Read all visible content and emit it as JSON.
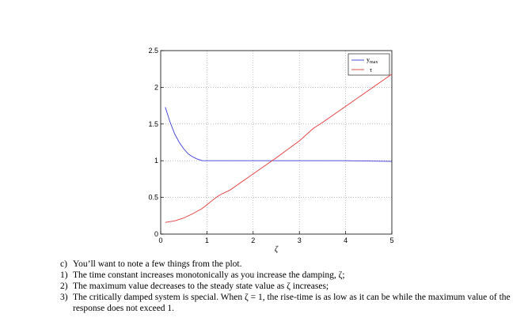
{
  "chart_data": {
    "type": "line",
    "xlabel": "ζ",
    "xlim": [
      0,
      5
    ],
    "ylim": [
      0,
      2.5
    ],
    "xticks": [
      "0",
      "1",
      "2",
      "3",
      "4",
      "5"
    ],
    "yticks": [
      "0",
      "0.5",
      "1",
      "1.5",
      "2",
      "2.5"
    ],
    "grid": true,
    "legend_position": "top-right",
    "series": [
      {
        "name": "y",
        "name_subscript": "max",
        "color": "#3b3bd6",
        "x": [
          0.1,
          0.2,
          0.3,
          0.4,
          0.5,
          0.6,
          0.7,
          0.8,
          0.9,
          1.0,
          2.0,
          3.0,
          4.0,
          5.0
        ],
        "values": [
          1.73,
          1.53,
          1.37,
          1.25,
          1.16,
          1.09,
          1.05,
          1.02,
          1.0,
          1.0,
          1.0,
          1.0,
          1.0,
          0.99
        ]
      },
      {
        "name": "τ",
        "color": "#e03b3b",
        "x": [
          0.1,
          0.3,
          0.5,
          0.7,
          0.9,
          1.0,
          1.1,
          1.2,
          1.3,
          1.5,
          2.0,
          2.5,
          3.0,
          3.3,
          3.5,
          4.0,
          4.5,
          5.0
        ],
        "values": [
          0.16,
          0.18,
          0.22,
          0.28,
          0.35,
          0.4,
          0.45,
          0.5,
          0.54,
          0.6,
          0.82,
          1.04,
          1.27,
          1.44,
          1.52,
          1.74,
          1.96,
          2.18
        ]
      }
    ]
  },
  "notes": [
    {
      "num": "c)",
      "text": "You’ll want to note a few things from the plot."
    },
    {
      "num": "1)",
      "text": "The time constant increases monotonically as you increase the damping, ζ;"
    },
    {
      "num": "2)",
      "text": "The maximum value decreases to the steady state value as ζ increases;"
    },
    {
      "num": "3)",
      "text": "The critically damped system is special. When ζ = 1, the rise-time is as low as it can be while the maximum value of the response does not exceed 1."
    }
  ]
}
